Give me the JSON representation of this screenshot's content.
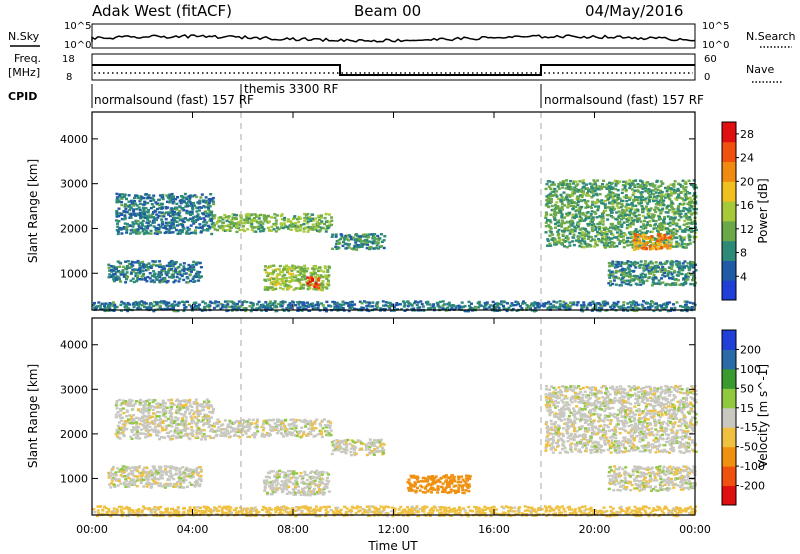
{
  "header": {
    "title": "Adak West (fitACF)",
    "beam": "Beam 00",
    "date": "04/May/2016"
  },
  "panel_labels": {
    "nsky": "N.Sky",
    "nsearch": "N.Search",
    "freq_line1": "Freq.",
    "freq_line2": "[MHz]",
    "nave": "Nave",
    "cpid": "CPID"
  },
  "top_ticks": {
    "nsky_hi": "10^5",
    "nsky_lo": "10^0",
    "nsearch_hi": "10^5",
    "nsearch_lo": "10^0",
    "freq_hi": "18",
    "freq_lo": "8",
    "nave_hi": "60",
    "nave_lo": "0"
  },
  "cpid_segments": [
    {
      "label": "normalsound (fast) 157 RF",
      "start": 0,
      "end": 6
    },
    {
      "label": "themis 3300 RF",
      "start": 6,
      "end": 18
    },
    {
      "label": "normalsound (fast) 157 RF",
      "start": 18,
      "end": 24
    }
  ],
  "colors": {
    "power": [
      "#1f3fd6",
      "#1f5aa8",
      "#2e8a78",
      "#6aa84a",
      "#a6c93a",
      "#f0c020",
      "#f08a10",
      "#f05010",
      "#e01010"
    ],
    "velocity": [
      "#e01010",
      "#f05010",
      "#f09010",
      "#f0c040",
      "#c8c8c0",
      "#90c840",
      "#3a9a30",
      "#2a6aa8",
      "#1f3fd6"
    ]
  },
  "chart_data": [
    {
      "type": "heatmap",
      "name": "power",
      "xlabel": "",
      "ylabel": "Slant Range [km]",
      "xlim": [
        0,
        24
      ],
      "ylim": [
        180,
        4600
      ],
      "xticks": [
        "00:00",
        "04:00",
        "08:00",
        "12:00",
        "16:00",
        "20:00",
        "00:00"
      ],
      "yticks": [
        1000,
        2000,
        3000,
        4000
      ],
      "colorbar": {
        "label": "Power [dB]",
        "ticks": [
          4,
          8,
          12,
          16,
          20,
          24,
          28
        ],
        "range": [
          0,
          30
        ]
      },
      "echo_regions": [
        {
          "t0": 0.9,
          "t1": 4.8,
          "r0": 1900,
          "r1": 2800,
          "value": 6
        },
        {
          "t0": 4.8,
          "t1": 9.5,
          "r0": 1950,
          "r1": 2350,
          "value": 12
        },
        {
          "t0": 9.5,
          "t1": 11.6,
          "r0": 1550,
          "r1": 1900,
          "value": 8
        },
        {
          "t0": 0.6,
          "t1": 4.3,
          "r0": 820,
          "r1": 1300,
          "value": 6
        },
        {
          "t0": 6.8,
          "t1": 9.4,
          "r0": 650,
          "r1": 1200,
          "value": 14
        },
        {
          "t0": 8.5,
          "t1": 9.0,
          "r0": 700,
          "r1": 950,
          "value": 28
        },
        {
          "t0": 18.0,
          "t1": 24.0,
          "r0": 1600,
          "r1": 3100,
          "value": 10
        },
        {
          "t0": 21.5,
          "t1": 23.0,
          "r0": 1550,
          "r1": 1900,
          "value": 22
        },
        {
          "t0": 20.5,
          "t1": 24.0,
          "r0": 750,
          "r1": 1300,
          "value": 8
        },
        {
          "t0": 0.0,
          "t1": 24.0,
          "r0": 180,
          "r1": 400,
          "value": 6
        }
      ]
    },
    {
      "type": "heatmap",
      "name": "velocity",
      "xlabel": "Time UT",
      "ylabel": "Slant Range [km]",
      "xlim": [
        0,
        24
      ],
      "ylim": [
        180,
        4600
      ],
      "xticks": [
        "00:00",
        "04:00",
        "08:00",
        "12:00",
        "16:00",
        "20:00",
        "00:00"
      ],
      "yticks": [
        1000,
        2000,
        3000,
        4000
      ],
      "colorbar": {
        "label": "Velocity [m s^-1]",
        "ticks": [
          200,
          100,
          50,
          15,
          -15,
          -50,
          -100,
          -200
        ]
      },
      "echo_regions": [
        {
          "t0": 0.9,
          "t1": 4.8,
          "r0": 1900,
          "r1": 2800,
          "value": 0
        },
        {
          "t0": 4.8,
          "t1": 9.5,
          "r0": 1950,
          "r1": 2350,
          "value": 0
        },
        {
          "t0": 9.5,
          "t1": 11.6,
          "r0": 1550,
          "r1": 1900,
          "value": 0
        },
        {
          "t0": 0.6,
          "t1": 4.3,
          "r0": 820,
          "r1": 1300,
          "value": 0
        },
        {
          "t0": 6.8,
          "t1": 9.4,
          "r0": 650,
          "r1": 1200,
          "value": 0
        },
        {
          "t0": 12.5,
          "t1": 15.0,
          "r0": 700,
          "r1": 1100,
          "value": -80
        },
        {
          "t0": 18.0,
          "t1": 24.0,
          "r0": 1600,
          "r1": 3100,
          "value": 0
        },
        {
          "t0": 20.5,
          "t1": 24.0,
          "r0": 750,
          "r1": 1300,
          "value": 0
        },
        {
          "t0": 0.0,
          "t1": 24.0,
          "r0": 180,
          "r1": 400,
          "value": -30
        }
      ]
    }
  ]
}
